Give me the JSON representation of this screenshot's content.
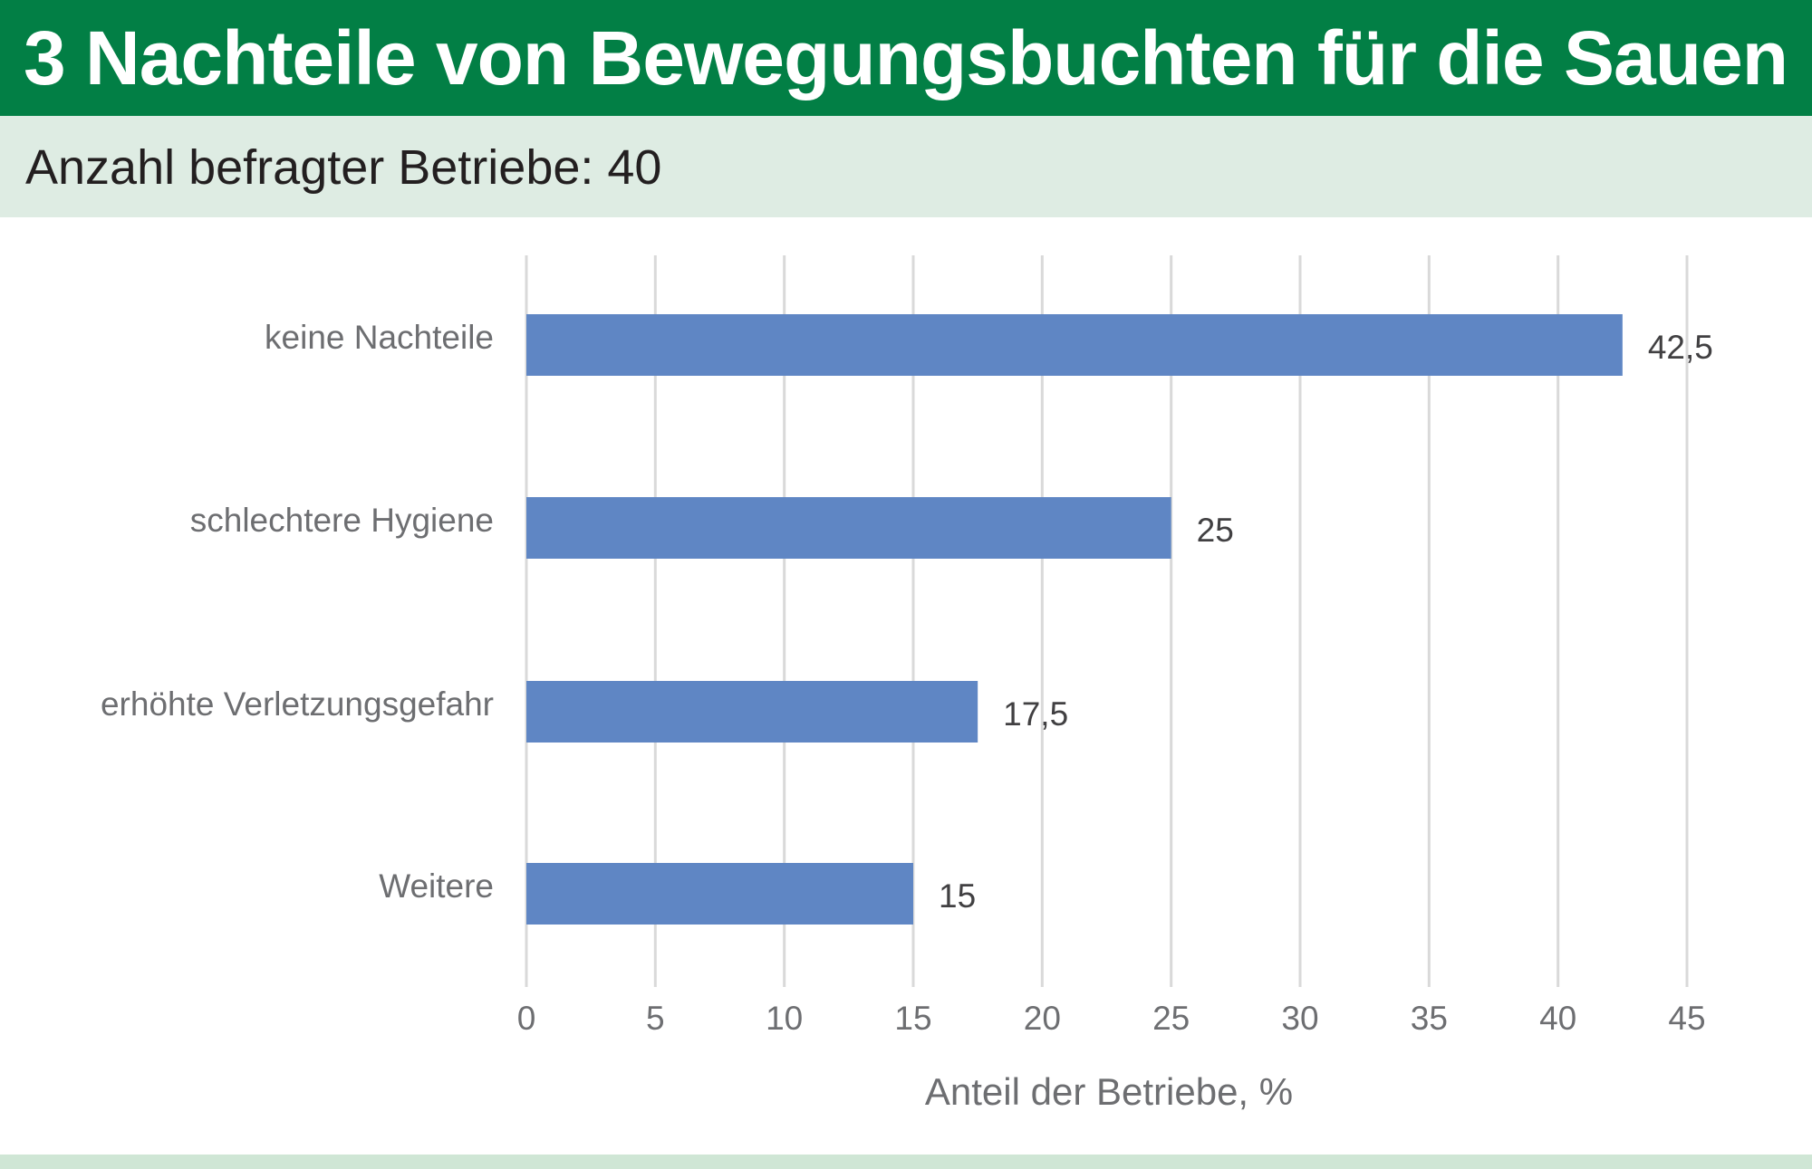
{
  "header": {
    "title": "3 Nachteile von Bewegungsbuchten für die Sauen",
    "subtitle": "Anzahl befragter Betriebe: 40"
  },
  "colors": {
    "header_bg": "#027f45",
    "subheader_bg": "#deece3",
    "bar": "#5f86c4",
    "grid": "#d9d9d9"
  },
  "chart_data": {
    "type": "bar",
    "orientation": "horizontal",
    "categories": [
      "keine Nachteile",
      "schlechtere Hygiene",
      "erhöhte Verletzungsgefahr",
      "Weitere"
    ],
    "values": [
      42.5,
      25,
      17.5,
      15
    ],
    "value_labels": [
      "42,5",
      "25",
      "17,5",
      "15"
    ],
    "xlabel": "Anteil der Betriebe, %",
    "ylabel": "",
    "xlim": [
      0,
      45
    ],
    "xticks": [
      "0",
      "5",
      "10",
      "15",
      "20",
      "25",
      "30",
      "35",
      "40",
      "45"
    ],
    "grid": "vertical",
    "legend": "none"
  }
}
